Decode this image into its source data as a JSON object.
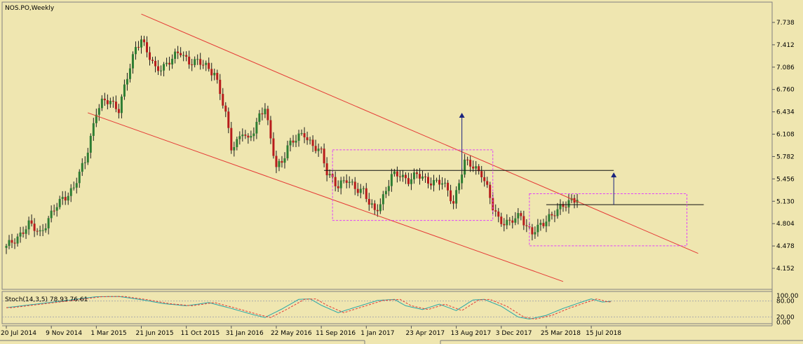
{
  "window": {
    "title": "NOS.PO,Weekly"
  },
  "indicator": {
    "label": "Stoch(14,3,5) 78.93 76.61"
  },
  "colors": {
    "background": "#efe6b0",
    "bull_candle": "#2e7d32",
    "bear_candle": "#b71c1c",
    "trendline": "#e53935",
    "box": "#e040fb",
    "arrow": "#1a237e",
    "stoch_main": "#2aa7a7",
    "stoch_signal": "#e53935"
  },
  "chart_data": {
    "type": "candlestick",
    "symbol": "NOS.PO",
    "timeframe": "Weekly",
    "y_axis": {
      "ticks": [
        "7.738",
        "7.412",
        "7.086",
        "6.760",
        "6.434",
        "6.108",
        "5.782",
        "5.456",
        "5.130",
        "4.804",
        "4.478",
        "4.152"
      ],
      "range": [
        4.0,
        7.95
      ]
    },
    "x_axis": {
      "labels": [
        "20 Jul 2014",
        "9 Nov 2014",
        "1 Mar 2015",
        "21 Jun 2015",
        "11 Oct 2015",
        "31 Jan 2016",
        "22 May 2016",
        "11 Sep 2016",
        "1 Jan 2017",
        "23 Apr 2017",
        "13 Aug 2017",
        "3 Dec 2017",
        "25 Mar 2018",
        "15 Jul 2018"
      ],
      "label_week_index": [
        0,
        16,
        32,
        48,
        64,
        80,
        96,
        112,
        128,
        144,
        160,
        176,
        192,
        208
      ]
    },
    "close_path": [
      [
        0,
        4.45
      ],
      [
        4,
        4.62
      ],
      [
        8,
        4.78
      ],
      [
        12,
        4.68
      ],
      [
        16,
        4.93
      ],
      [
        20,
        5.18
      ],
      [
        24,
        5.32
      ],
      [
        28,
        5.72
      ],
      [
        30,
        6.08
      ],
      [
        32,
        6.44
      ],
      [
        34,
        6.55
      ],
      [
        37,
        6.6
      ],
      [
        40,
        6.48
      ],
      [
        43,
        6.92
      ],
      [
        46,
        7.38
      ],
      [
        48,
        7.52
      ],
      [
        50,
        7.3
      ],
      [
        53,
        7.04
      ],
      [
        56,
        7.12
      ],
      [
        59,
        7.2
      ],
      [
        62,
        7.3
      ],
      [
        65,
        7.18
      ],
      [
        68,
        7.15
      ],
      [
        71,
        7.1
      ],
      [
        74,
        7.02
      ],
      [
        76,
        6.7
      ],
      [
        78,
        6.38
      ],
      [
        80,
        5.92
      ],
      [
        82,
        6.02
      ],
      [
        84,
        6.15
      ],
      [
        86,
        5.98
      ],
      [
        88,
        6.16
      ],
      [
        90,
        6.4
      ],
      [
        92,
        6.52
      ],
      [
        94,
        6.0
      ],
      [
        96,
        5.62
      ],
      [
        98,
        5.72
      ],
      [
        100,
        5.95
      ],
      [
        103,
        6.02
      ],
      [
        106,
        6.12
      ],
      [
        109,
        5.95
      ],
      [
        112,
        5.82
      ],
      [
        114,
        5.55
      ],
      [
        116,
        5.48
      ],
      [
        118,
        5.35
      ],
      [
        121,
        5.42
      ],
      [
        124,
        5.35
      ],
      [
        127,
        5.28
      ],
      [
        129,
        5.08
      ],
      [
        131,
        4.98
      ],
      [
        133,
        5.12
      ],
      [
        135,
        5.3
      ],
      [
        137,
        5.48
      ],
      [
        140,
        5.52
      ],
      [
        143,
        5.45
      ],
      [
        146,
        5.5
      ],
      [
        149,
        5.45
      ],
      [
        152,
        5.42
      ],
      [
        155,
        5.38
      ],
      [
        157,
        5.28
      ],
      [
        159,
        5.12
      ],
      [
        161,
        5.42
      ],
      [
        163,
        5.68
      ],
      [
        165,
        5.66
      ],
      [
        167,
        5.62
      ],
      [
        169,
        5.55
      ],
      [
        171,
        5.3
      ],
      [
        173,
        5.02
      ],
      [
        175,
        4.88
      ],
      [
        177,
        4.84
      ],
      [
        179,
        4.82
      ],
      [
        181,
        4.86
      ],
      [
        183,
        4.92
      ],
      [
        185,
        4.78
      ],
      [
        187,
        4.68
      ],
      [
        189,
        4.72
      ],
      [
        191,
        4.8
      ],
      [
        193,
        4.92
      ],
      [
        195,
        4.98
      ],
      [
        197,
        5.02
      ],
      [
        199,
        5.06
      ],
      [
        201,
        5.16
      ],
      [
        203,
        5.2
      ]
    ],
    "stochastic": {
      "params": "14,3,5",
      "main": 78.93,
      "signal": 76.61,
      "levels": [
        "100.00",
        "80.00",
        "20.00",
        "0.00"
      ],
      "main_path": [
        [
          0,
          55
        ],
        [
          8,
          65
        ],
        [
          20,
          80
        ],
        [
          32,
          96
        ],
        [
          40,
          97
        ],
        [
          48,
          85
        ],
        [
          56,
          70
        ],
        [
          64,
          62
        ],
        [
          72,
          74
        ],
        [
          80,
          52
        ],
        [
          88,
          28
        ],
        [
          92,
          18
        ],
        [
          98,
          50
        ],
        [
          104,
          86
        ],
        [
          108,
          88
        ],
        [
          112,
          64
        ],
        [
          118,
          36
        ],
        [
          124,
          56
        ],
        [
          132,
          82
        ],
        [
          138,
          86
        ],
        [
          142,
          62
        ],
        [
          148,
          48
        ],
        [
          154,
          68
        ],
        [
          160,
          44
        ],
        [
          166,
          84
        ],
        [
          170,
          86
        ],
        [
          176,
          60
        ],
        [
          182,
          20
        ],
        [
          186,
          12
        ],
        [
          192,
          26
        ],
        [
          198,
          52
        ],
        [
          204,
          74
        ],
        [
          208,
          88
        ],
        [
          212,
          76
        ],
        [
          215,
          78.93
        ]
      ]
    },
    "trendlines": [
      {
        "from": [
          48,
          7.86
        ],
        "to": [
          246,
          4.37
        ]
      },
      {
        "from": [
          29,
          6.42
        ],
        "to": [
          198,
          3.96
        ]
      }
    ],
    "resistance_lines": [
      {
        "from": [
          113,
          5.58
        ],
        "to": [
          216,
          5.58
        ]
      },
      {
        "from": [
          192,
          5.08
        ],
        "to": [
          248,
          5.08
        ]
      }
    ],
    "boxes": [
      {
        "from": [
          116,
          4.85
        ],
        "to": [
          173,
          5.88
        ]
      },
      {
        "from": [
          186,
          4.48
        ],
        "to": [
          242,
          5.24
        ]
      }
    ],
    "arrows": [
      {
        "x": 162,
        "from": 5.58,
        "to": 6.42
      },
      {
        "x": 216,
        "from": 5.08,
        "to": 5.55
      }
    ]
  }
}
